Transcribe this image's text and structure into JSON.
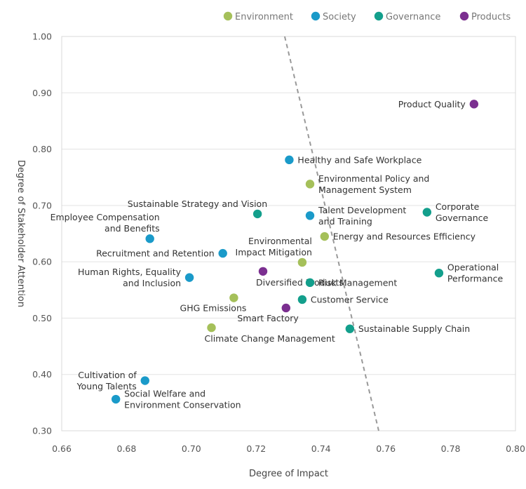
{
  "chart_data": {
    "type": "scatter",
    "xlabel": "Degree of Impact",
    "ylabel": "Degree of Stakeholder Attention",
    "xlim": [
      0.66,
      0.8
    ],
    "ylim": [
      0.3,
      1.0
    ],
    "xticks": [
      "0.66",
      "0.68",
      "0.70",
      "0.72",
      "0.74",
      "0.76",
      "0.78",
      "0.80"
    ],
    "yticks": [
      "0.30",
      "0.40",
      "0.50",
      "0.60",
      "0.70",
      "0.80",
      "0.90",
      "1.00"
    ],
    "grid": "horizontal",
    "legend": "top-right",
    "categories": [
      {
        "name": "Environment",
        "color": "#a5c05a"
      },
      {
        "name": "Society",
        "color": "#1a9ac9"
      },
      {
        "name": "Governance",
        "color": "#139f8c"
      },
      {
        "name": "Products",
        "color": "#7b2f90"
      }
    ],
    "trend_line": {
      "style": "dashed",
      "color": "#999999",
      "points": [
        [
          0.7288,
          1.0
        ],
        [
          0.7578,
          0.3
        ]
      ]
    },
    "points": [
      {
        "label_lines": [
          "Product Quality"
        ],
        "category": "Products",
        "x": 0.7872,
        "y": 0.88,
        "anchor": "left"
      },
      {
        "label_lines": [
          "Healthy and Safe Workplace"
        ],
        "category": "Society",
        "x": 0.7302,
        "y": 0.781,
        "anchor": "right"
      },
      {
        "label_lines": [
          "Environmental Policy and",
          "Management System"
        ],
        "category": "Environment",
        "x": 0.7366,
        "y": 0.738,
        "anchor": "right"
      },
      {
        "label_lines": [
          "Sustainable Strategy and Vision"
        ],
        "category": "Governance",
        "x": 0.7204,
        "y": 0.685,
        "anchor": "above-left"
      },
      {
        "label_lines": [
          "Talent Development",
          "and Training"
        ],
        "category": "Society",
        "x": 0.7366,
        "y": 0.682,
        "anchor": "right"
      },
      {
        "label_lines": [
          "Corporate",
          "Governance"
        ],
        "category": "Governance",
        "x": 0.7727,
        "y": 0.688,
        "anchor": "right"
      },
      {
        "label_lines": [
          "Employee Compensation",
          "and Benefits"
        ],
        "category": "Society",
        "x": 0.6872,
        "y": 0.641,
        "anchor": "above-left"
      },
      {
        "label_lines": [
          "Energy and Resources Efficiency"
        ],
        "category": "Environment",
        "x": 0.7411,
        "y": 0.645,
        "anchor": "right"
      },
      {
        "label_lines": [
          "Recruitment and Retention"
        ],
        "category": "Society",
        "x": 0.7097,
        "y": 0.615,
        "anchor": "left"
      },
      {
        "label_lines": [
          "Environmental",
          "Impact Mitigation"
        ],
        "category": "Environment",
        "x": 0.7342,
        "y": 0.599,
        "anchor": "above-left"
      },
      {
        "label_lines": [
          "Diversified Products"
        ],
        "category": "Products",
        "x": 0.7221,
        "y": 0.583,
        "anchor": "below-right"
      },
      {
        "label_lines": [
          "Human Rights, Equality",
          "and Inclusion"
        ],
        "category": "Society",
        "x": 0.6994,
        "y": 0.572,
        "anchor": "left"
      },
      {
        "label_lines": [
          "Risk Management"
        ],
        "category": "Governance",
        "x": 0.7366,
        "y": 0.563,
        "anchor": "right"
      },
      {
        "label_lines": [
          "Operational",
          "Performance"
        ],
        "category": "Governance",
        "x": 0.7764,
        "y": 0.58,
        "anchor": "right"
      },
      {
        "label_lines": [
          "GHG Emissions"
        ],
        "category": "Environment",
        "x": 0.7131,
        "y": 0.536,
        "anchor": "below-left"
      },
      {
        "label_lines": [
          "Customer Service"
        ],
        "category": "Governance",
        "x": 0.7342,
        "y": 0.533,
        "anchor": "right"
      },
      {
        "label_lines": [
          "Smart Factory"
        ],
        "category": "Products",
        "x": 0.7292,
        "y": 0.518,
        "anchor": "below-left"
      },
      {
        "label_lines": [
          "Climate Change Management"
        ],
        "category": "Environment",
        "x": 0.7062,
        "y": 0.483,
        "anchor": "below-right"
      },
      {
        "label_lines": [
          "Sustainable Supply Chain"
        ],
        "category": "Governance",
        "x": 0.7489,
        "y": 0.481,
        "anchor": "right"
      },
      {
        "label_lines": [
          "Cultivation of",
          "Young Talents"
        ],
        "category": "Society",
        "x": 0.6857,
        "y": 0.389,
        "anchor": "left"
      },
      {
        "label_lines": [
          "Social Welfare and",
          "Environment Conservation"
        ],
        "category": "Society",
        "x": 0.6767,
        "y": 0.356,
        "anchor": "right"
      }
    ]
  }
}
